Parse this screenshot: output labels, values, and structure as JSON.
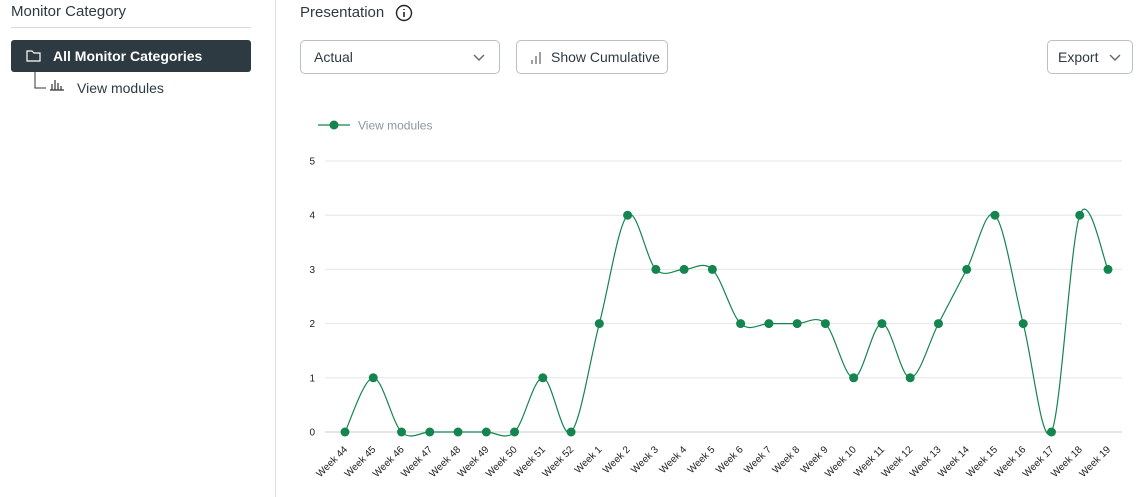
{
  "sidebar": {
    "title": "Monitor Category",
    "items": [
      {
        "label": "All Monitor Categories"
      },
      {
        "label": "View modules"
      }
    ]
  },
  "toolbar": {
    "title": "Presentation",
    "select": "Actual",
    "cumulative_button": "Show Cumulative",
    "export_button": "Export"
  },
  "chart_data": {
    "type": "line",
    "categories": [
      "Week 44",
      "Week 45",
      "Week 46",
      "Week 47",
      "Week 48",
      "Week 49",
      "Week 50",
      "Week 51",
      "Week 52",
      "Week 1",
      "Week 2",
      "Week 3",
      "Week 4",
      "Week 5",
      "Week 6",
      "Week 7",
      "Week 8",
      "Week 9",
      "Week 10",
      "Week 11",
      "Week 12",
      "Week 13",
      "Week 14",
      "Week 15",
      "Week 16",
      "Week 17",
      "Week 18",
      "Week 19"
    ],
    "series": [
      {
        "name": "View modules",
        "color": "#14854f",
        "values": [
          0,
          1,
          0,
          0,
          0,
          0,
          0,
          1,
          0,
          2,
          4,
          3,
          3,
          3,
          2,
          2,
          2,
          2,
          1,
          2,
          1,
          2,
          3,
          4,
          2,
          0,
          4,
          3
        ]
      }
    ],
    "ylim": [
      0,
      5
    ],
    "yticks": [
      0,
      1,
      2,
      3,
      4,
      5
    ],
    "grid": true,
    "legend": "top-left"
  }
}
